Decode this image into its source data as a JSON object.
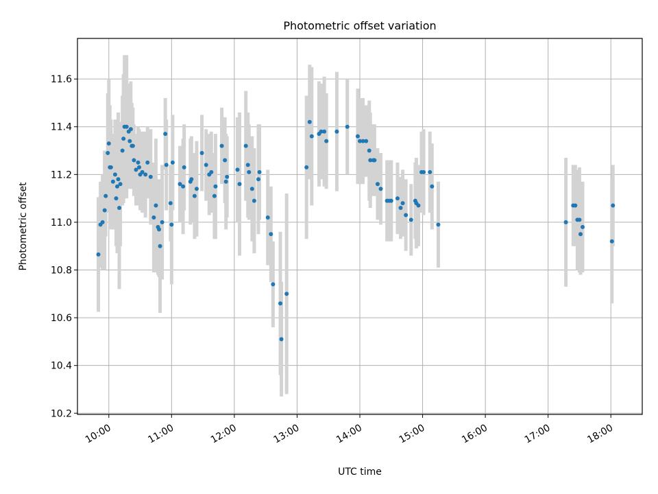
{
  "chart_data": {
    "type": "scatter",
    "title": "Photometric offset variation",
    "xlabel": "UTC time",
    "ylabel": "Photometric offset",
    "x_unit": "hours UTC",
    "xlim": [
      "09:30",
      "18:30"
    ],
    "ylim": [
      10.195,
      11.77
    ],
    "x_ticks": [
      "10:00",
      "11:00",
      "12:00",
      "13:00",
      "14:00",
      "15:00",
      "16:00",
      "17:00",
      "18:00"
    ],
    "y_ticks": [
      "10.2",
      "10.4",
      "10.6",
      "10.8",
      "11.0",
      "11.2",
      "11.4",
      "11.6"
    ],
    "grid": true,
    "x_tick_rotation": "30",
    "colors": {
      "point": "#1f77b4",
      "errorbar": "#d3d3d3",
      "grid": "#b0b0b0"
    },
    "series": [
      {
        "points": [
          [
            "09:50",
            10.865,
            0.24
          ],
          [
            "09:52",
            10.99,
            0.18
          ],
          [
            "09:54",
            11.0,
            0.2
          ],
          [
            "09:56",
            11.05,
            0.25
          ],
          [
            "09:57",
            11.11,
            0.17
          ],
          [
            "09:59",
            11.29,
            0.25
          ],
          [
            "10:00",
            11.33,
            0.27
          ],
          [
            "10:01",
            11.23,
            0.26
          ],
          [
            "10:02",
            11.23,
            0.2
          ],
          [
            "10:04",
            11.17,
            0.2
          ],
          [
            "10:06",
            11.2,
            0.23
          ],
          [
            "10:07",
            11.1,
            0.2
          ],
          [
            "10:08",
            11.15,
            0.28
          ],
          [
            "10:09",
            11.18,
            0.28
          ],
          [
            "10:10",
            11.06,
            0.34
          ],
          [
            "10:11",
            11.16,
            0.26
          ],
          [
            "10:13",
            11.3,
            0.23
          ],
          [
            "10:14",
            11.35,
            0.27
          ],
          [
            "10:15",
            11.4,
            0.3
          ],
          [
            "10:17",
            11.4,
            0.3
          ],
          [
            "10:19",
            11.38,
            0.2
          ],
          [
            "10:20",
            11.34,
            0.2
          ],
          [
            "10:21",
            11.39,
            0.2
          ],
          [
            "10:22",
            11.32,
            0.18
          ],
          [
            "10:23",
            11.32,
            0.16
          ],
          [
            "10:24",
            11.26,
            0.15
          ],
          [
            "10:26",
            11.22,
            0.15
          ],
          [
            "10:28",
            11.25,
            0.15
          ],
          [
            "10:29",
            11.23,
            0.16
          ],
          [
            "10:30",
            11.2,
            0.15
          ],
          [
            "10:32",
            11.21,
            0.17
          ],
          [
            "10:35",
            11.2,
            0.18
          ],
          [
            "10:37",
            11.25,
            0.15
          ],
          [
            "10:40",
            11.19,
            0.2
          ],
          [
            "10:43",
            11.02,
            0.23
          ],
          [
            "10:45",
            11.07,
            0.28
          ],
          [
            "10:47",
            10.98,
            0.2
          ],
          [
            "10:48",
            10.97,
            0.2
          ],
          [
            "10:49",
            10.9,
            0.28
          ],
          [
            "10:51",
            11.0,
            0.24
          ],
          [
            "10:54",
            11.37,
            0.15
          ],
          [
            "10:55",
            11.24,
            0.19
          ],
          [
            "10:59",
            11.08,
            0.16
          ],
          [
            "11:00",
            10.99,
            0.25
          ],
          [
            "11:01",
            11.25,
            0.2
          ],
          [
            "11:08",
            11.16,
            0.16
          ],
          [
            "11:11",
            11.15,
            0.2
          ],
          [
            "11:12",
            11.23,
            0.18
          ],
          [
            "11:18",
            11.17,
            0.18
          ],
          [
            "11:19",
            11.18,
            0.18
          ],
          [
            "11:22",
            11.11,
            0.18
          ],
          [
            "11:24",
            11.14,
            0.2
          ],
          [
            "11:29",
            11.29,
            0.16
          ],
          [
            "11:33",
            11.24,
            0.15
          ],
          [
            "11:36",
            11.2,
            0.17
          ],
          [
            "11:38",
            11.21,
            0.17
          ],
          [
            "11:41",
            11.11,
            0.18
          ],
          [
            "11:42",
            11.15,
            0.22
          ],
          [
            "11:48",
            11.32,
            0.16
          ],
          [
            "11:51",
            11.26,
            0.18
          ],
          [
            "11:52",
            11.17,
            0.2
          ],
          [
            "11:53",
            11.19,
            0.17
          ],
          [
            "12:03",
            11.22,
            0.22
          ],
          [
            "12:05",
            11.16,
            0.3
          ],
          [
            "12:11",
            11.32,
            0.23
          ],
          [
            "12:13",
            11.24,
            0.22
          ],
          [
            "12:14",
            11.21,
            0.2
          ],
          [
            "12:17",
            11.14,
            0.22
          ],
          [
            "12:19",
            11.09,
            0.22
          ],
          [
            "12:23",
            11.18,
            0.23
          ],
          [
            "12:24",
            11.21,
            0.2
          ],
          [
            "12:32",
            11.02,
            0.2
          ],
          [
            "12:35",
            10.95,
            0.2
          ],
          [
            "12:37",
            10.74,
            0.18
          ],
          [
            "12:44",
            10.66,
            0.3
          ],
          [
            "12:45",
            10.51,
            0.24
          ],
          [
            "12:50",
            10.7,
            0.42
          ],
          [
            "13:09",
            11.23,
            0.3
          ],
          [
            "13:12",
            11.42,
            0.24
          ],
          [
            "13:14",
            11.36,
            0.29
          ],
          [
            "13:21",
            11.37,
            0.22
          ],
          [
            "13:23",
            11.38,
            0.2
          ],
          [
            "13:26",
            11.38,
            0.23
          ],
          [
            "13:28",
            11.34,
            0.2
          ],
          [
            "13:38",
            11.38,
            0.25
          ],
          [
            "13:48",
            11.4,
            0.2
          ],
          [
            "13:58",
            11.36,
            0.2
          ],
          [
            "14:00",
            11.34,
            0.18
          ],
          [
            "14:03",
            11.34,
            0.18
          ],
          [
            "14:06",
            11.34,
            0.15
          ],
          [
            "14:09",
            11.3,
            0.21
          ],
          [
            "14:10",
            11.26,
            0.2
          ],
          [
            "14:13",
            11.26,
            0.15
          ],
          [
            "14:14",
            11.26,
            0.15
          ],
          [
            "14:17",
            11.16,
            0.15
          ],
          [
            "14:20",
            11.14,
            0.15
          ],
          [
            "14:26",
            11.09,
            0.17
          ],
          [
            "14:28",
            11.09,
            0.17
          ],
          [
            "14:30",
            11.09,
            0.17
          ],
          [
            "14:36",
            11.1,
            0.15
          ],
          [
            "14:39",
            11.06,
            0.13
          ],
          [
            "14:41",
            11.08,
            0.14
          ],
          [
            "14:44",
            11.03,
            0.15
          ],
          [
            "14:49",
            11.01,
            0.15
          ],
          [
            "14:53",
            11.09,
            0.16
          ],
          [
            "14:54",
            11.08,
            0.19
          ],
          [
            "14:56",
            11.07,
            0.17
          ],
          [
            "14:59",
            11.21,
            0.17
          ],
          [
            "15:01",
            11.21,
            0.18
          ],
          [
            "15:07",
            11.21,
            0.17
          ],
          [
            "15:09",
            11.15,
            0.18
          ],
          [
            "15:15",
            10.99,
            0.18
          ],
          [
            "17:17",
            11.0,
            0.27
          ],
          [
            "17:24",
            11.07,
            0.17
          ],
          [
            "17:26",
            11.07,
            0.17
          ],
          [
            "17:28",
            11.01,
            0.21
          ],
          [
            "17:30",
            11.01,
            0.22
          ],
          [
            "17:31",
            10.95,
            0.17
          ],
          [
            "17:33",
            10.98,
            0.19
          ],
          [
            "18:01",
            10.92,
            0.26
          ],
          [
            "18:02",
            11.07,
            0.17
          ]
        ]
      }
    ]
  }
}
